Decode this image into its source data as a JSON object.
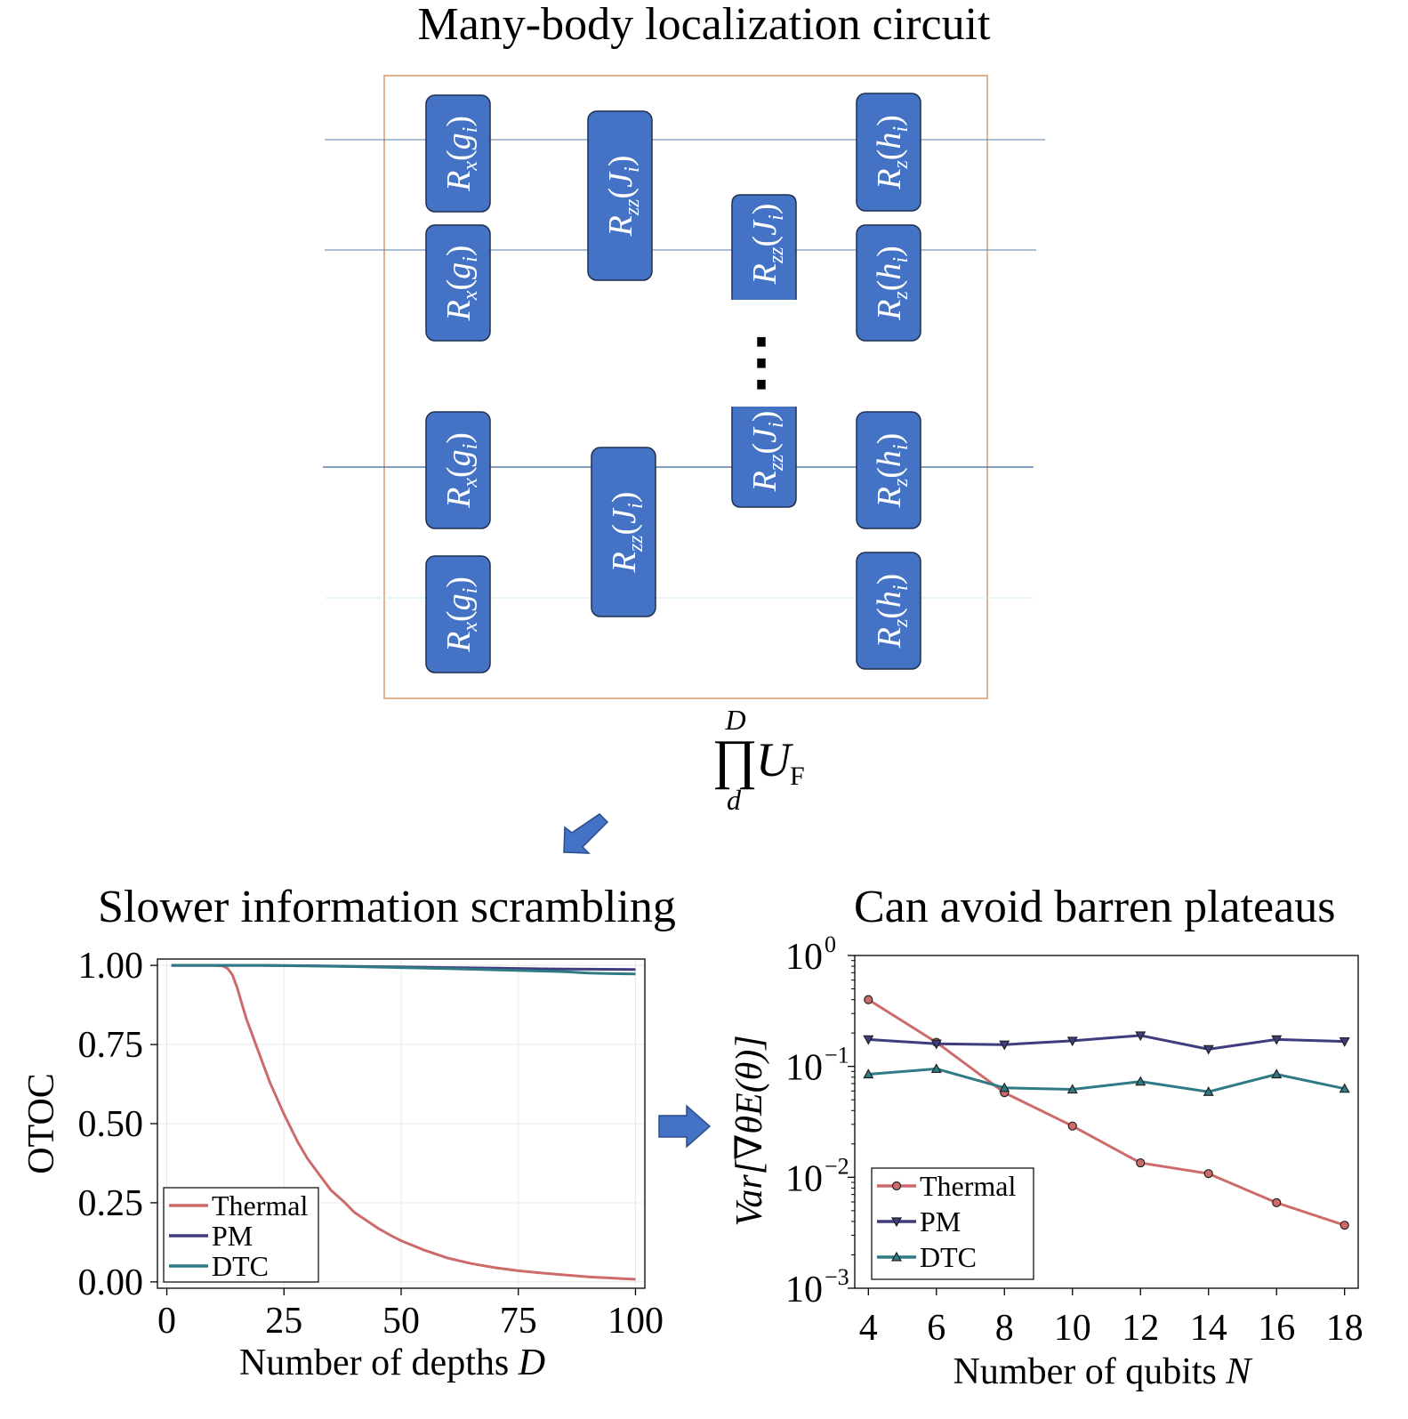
{
  "titles": {
    "circuit": "Many-body localization circuit",
    "left_panel": "Slower information scrambling",
    "right_panel": "Can avoid barren plateaus"
  },
  "circuit": {
    "gates": {
      "rx": {
        "op": "R",
        "sub": "x",
        "arg": "g",
        "argsub": "i"
      },
      "rzz": {
        "op": "R",
        "sub": "zz",
        "arg": "J",
        "argsub": "i"
      },
      "rz": {
        "op": "R",
        "sub": "z",
        "arg": "h",
        "argsub": "i"
      }
    },
    "ellipsis": "⋮",
    "product": {
      "symbol": "∏",
      "upper": "D",
      "lower": "d",
      "operator": "U",
      "operator_sub": "F"
    }
  },
  "colors": {
    "gate_fill": "#4472C4",
    "gate_stroke": "#1F2F4F",
    "frame": "#D99A6C",
    "wire": "#5A7FA6",
    "thermal": "#CD6B6B",
    "pm": "#3F3D7F",
    "dtc": "#2E7A85",
    "arrow": "#4472C4"
  },
  "chart_data": [
    {
      "type": "line",
      "title": "Slower information scrambling",
      "xlabel": "Number of depths D",
      "ylabel": "OTOC",
      "xlim": [
        -2,
        102
      ],
      "ylim": [
        -0.02,
        1.02
      ],
      "xticks": [
        0,
        25,
        50,
        75,
        100
      ],
      "xtick_labels": [
        "0",
        "25",
        "50",
        "75",
        "100"
      ],
      "yticks": [
        0,
        0.25,
        0.5,
        0.75,
        1.0
      ],
      "ytick_labels": [
        "0.00",
        "0.25",
        "0.50",
        "0.75",
        "1.00"
      ],
      "grid": true,
      "legend": "lower-left",
      "series": [
        {
          "name": "Thermal",
          "color": "#CD6B6B",
          "x": [
            1,
            5,
            10,
            12,
            13,
            14,
            15,
            16,
            17,
            18,
            20,
            22,
            25,
            28,
            30,
            33,
            35,
            38,
            40,
            43,
            45,
            48,
            50,
            55,
            60,
            65,
            70,
            75,
            80,
            85,
            90,
            95,
            100
          ],
          "y": [
            1.0,
            1.0,
            1.0,
            0.998,
            0.99,
            0.97,
            0.93,
            0.88,
            0.83,
            0.79,
            0.71,
            0.63,
            0.53,
            0.44,
            0.39,
            0.33,
            0.29,
            0.25,
            0.22,
            0.19,
            0.17,
            0.145,
            0.13,
            0.1,
            0.075,
            0.058,
            0.045,
            0.035,
            0.028,
            0.022,
            0.016,
            0.012,
            0.008
          ]
        },
        {
          "name": "PM",
          "color": "#3F3D7F",
          "x": [
            1,
            10,
            20,
            30,
            40,
            50,
            60,
            70,
            80,
            90,
            100
          ],
          "y": [
            1.0,
            1.0,
            1.0,
            0.999,
            0.997,
            0.995,
            0.993,
            0.991,
            0.989,
            0.988,
            0.987
          ]
        },
        {
          "name": "DTC",
          "color": "#2E7A85",
          "x": [
            1,
            10,
            20,
            30,
            40,
            50,
            60,
            70,
            80,
            85,
            90,
            95,
            100
          ],
          "y": [
            1.0,
            1.0,
            1.0,
            0.998,
            0.996,
            0.993,
            0.99,
            0.986,
            0.982,
            0.98,
            0.976,
            0.974,
            0.973
          ]
        }
      ]
    },
    {
      "type": "line",
      "title": "Can avoid barren plateaus",
      "xlabel": "Number of qubits N",
      "ylabel": "Var[∇θE(θ)]",
      "yscale": "log",
      "xlim": [
        3.6,
        18.4
      ],
      "ylim": [
        0.001,
        1
      ],
      "xticks": [
        4,
        6,
        8,
        10,
        12,
        14,
        16,
        18
      ],
      "xtick_labels": [
        "4",
        "6",
        "8",
        "10",
        "12",
        "14",
        "16",
        "18"
      ],
      "yticks": [
        0.001,
        0.01,
        0.1,
        1
      ],
      "ytick_labels": [
        {
          "base": "10",
          "exp": "−3"
        },
        {
          "base": "10",
          "exp": "−2"
        },
        {
          "base": "10",
          "exp": "−1"
        },
        {
          "base": "10",
          "exp": "0"
        }
      ],
      "grid": false,
      "legend": "lower-left",
      "categories": [
        4,
        6,
        8,
        10,
        12,
        14,
        16,
        18
      ],
      "series": [
        {
          "name": "Thermal",
          "color": "#CD6B6B",
          "marker": "circle",
          "values": [
            0.4,
            0.165,
            0.058,
            0.029,
            0.0135,
            0.0108,
            0.0059,
            0.0037
          ]
        },
        {
          "name": "PM",
          "color": "#3F3D7F",
          "marker": "triangle-down",
          "values": [
            0.175,
            0.16,
            0.157,
            0.17,
            0.19,
            0.143,
            0.175,
            0.168
          ]
        },
        {
          "name": "DTC",
          "color": "#2E7A85",
          "marker": "triangle-up",
          "values": [
            0.085,
            0.095,
            0.064,
            0.062,
            0.073,
            0.059,
            0.085,
            0.063
          ]
        }
      ]
    }
  ]
}
